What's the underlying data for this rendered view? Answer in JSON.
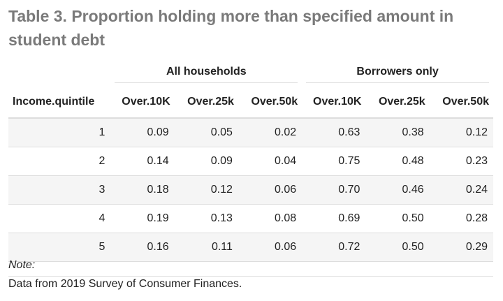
{
  "caption": "Table 3. Proportion holding more than specified amount in student debt",
  "spanners": [
    {
      "label": "All households"
    },
    {
      "label": "Borrowers only"
    }
  ],
  "columns": [
    "Income.quintile",
    "Over.10K",
    "Over.25k",
    "Over.50k",
    "Over.10K",
    "Over.25k",
    "Over.50k"
  ],
  "rows": [
    [
      "1",
      "0.09",
      "0.05",
      "0.02",
      "0.63",
      "0.38",
      "0.12"
    ],
    [
      "2",
      "0.14",
      "0.09",
      "0.04",
      "0.75",
      "0.48",
      "0.23"
    ],
    [
      "3",
      "0.18",
      "0.12",
      "0.06",
      "0.70",
      "0.46",
      "0.24"
    ],
    [
      "4",
      "0.19",
      "0.13",
      "0.08",
      "0.69",
      "0.50",
      "0.28"
    ],
    [
      "5",
      "0.16",
      "0.11",
      "0.06",
      "0.72",
      "0.50",
      "0.29"
    ]
  ],
  "note": {
    "label": "Note:",
    "text": "Data from 2019 Survey of Consumer Finances."
  }
}
